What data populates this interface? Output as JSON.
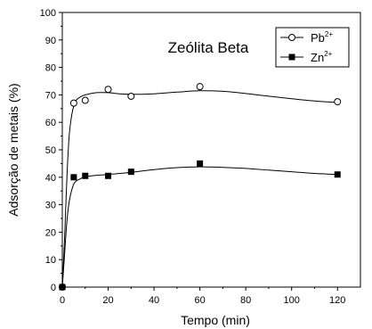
{
  "chart_data": {
    "type": "scatter",
    "annotation": "Zeólita Beta",
    "xlabel": "Tempo (min)",
    "ylabel": "Adsorção de metais  (%)",
    "xlim": [
      0,
      130
    ],
    "ylim": [
      0,
      100
    ],
    "xticks": [
      0,
      20,
      40,
      60,
      80,
      100,
      120
    ],
    "yticks": [
      0,
      10,
      20,
      30,
      40,
      50,
      60,
      70,
      80,
      90,
      100
    ],
    "grid": false,
    "legend_position": "top-right",
    "series": [
      {
        "name_base": "Pb",
        "name_sup": "2+",
        "marker": "open-circle",
        "x": [
          0,
          5,
          10,
          20,
          30,
          60,
          120
        ],
        "y": [
          0,
          67,
          68,
          72,
          69.5,
          73,
          67.5
        ],
        "curve_x": [
          0,
          1,
          2,
          3,
          4,
          5,
          6,
          8,
          10,
          15,
          20,
          25,
          30,
          40,
          50,
          60,
          70,
          80,
          90,
          100,
          110,
          120
        ],
        "curve_y": [
          0,
          18,
          40,
          55,
          62,
          66,
          68,
          69.3,
          70,
          70.8,
          70.8,
          70.4,
          70.2,
          70.4,
          71,
          71.5,
          71.3,
          70.5,
          69.5,
          68.6,
          67.8,
          67.2
        ]
      },
      {
        "name_base": "Zn",
        "name_sup": "2+",
        "marker": "filled-square",
        "x": [
          0,
          5,
          10,
          20,
          30,
          60,
          120
        ],
        "y": [
          0,
          40,
          40.5,
          40.5,
          42,
          45,
          41
        ],
        "curve_x": [
          0,
          1,
          2,
          3,
          4,
          5,
          6,
          8,
          10,
          15,
          20,
          30,
          40,
          50,
          60,
          70,
          80,
          90,
          100,
          110,
          120
        ],
        "curve_y": [
          0,
          12,
          24,
          31,
          35,
          37.5,
          38.6,
          39.5,
          40.2,
          40.7,
          41,
          41.8,
          42.8,
          43.5,
          43.8,
          43.6,
          43.2,
          42.6,
          42,
          41.4,
          41
        ]
      }
    ]
  }
}
